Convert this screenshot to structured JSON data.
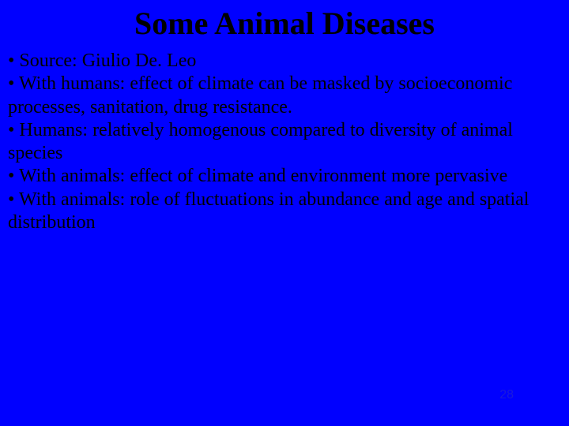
{
  "slide": {
    "title": "Some Animal Diseases",
    "bullets": [
      "• Source: Giulio De. Leo",
      "• With humans: effect of climate can be masked by socioeconomic processes, sanitation, drug resistance.",
      "• Humans: relatively homogenous compared to diversity of animal species",
      "• With animals: effect of climate and environment more pervasive",
      "• With animals: role of fluctuations in abundance and age and spatial distribution"
    ],
    "page_number": "28",
    "background_color": "#0000ff",
    "title_color": "#000000",
    "body_color": "#000000",
    "title_fontsize": 40,
    "body_fontsize": 24
  }
}
